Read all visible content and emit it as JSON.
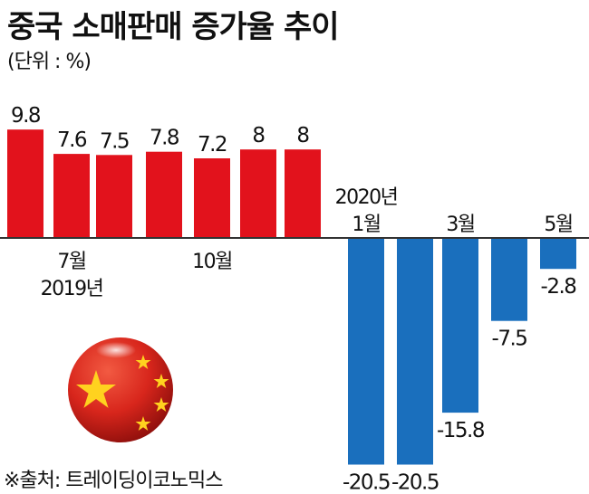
{
  "chart_data": {
    "type": "bar",
    "title": "중국 소매판매 증가율 추이",
    "unit_label": "(단위 : %)",
    "source": "※출처: 트레이딩이코노믹스",
    "categories": [
      "2019-06",
      "2019-07",
      "2019-08",
      "2019-09",
      "2019-10",
      "2019-11",
      "2019-12",
      "2020-01",
      "2020-02",
      "2020-03",
      "2020-04",
      "2020-05"
    ],
    "values": [
      9.8,
      7.6,
      7.5,
      7.8,
      7.2,
      8,
      8,
      -20.5,
      -20.5,
      -15.8,
      -7.5,
      -2.8
    ],
    "value_labels": [
      "9.8",
      "7.6",
      "7.5",
      "7.8",
      "7.2",
      "8",
      "8",
      "-20.5",
      "-20.5",
      "-15.8",
      "-7.5",
      "-2.8"
    ],
    "axis_labels": [
      {
        "index": 1,
        "lines": [
          "7월",
          "2019년"
        ]
      },
      {
        "index": 4,
        "lines": [
          "10월"
        ]
      },
      {
        "index": 7,
        "lines": [
          "2020년",
          "1월"
        ]
      },
      {
        "index": 9,
        "lines": [
          "3월"
        ]
      },
      {
        "index": 11,
        "lines": [
          "5월"
        ]
      }
    ],
    "colors": {
      "positive": "#e2121c",
      "negative": "#1a6fbd",
      "axis": "#333333"
    }
  }
}
